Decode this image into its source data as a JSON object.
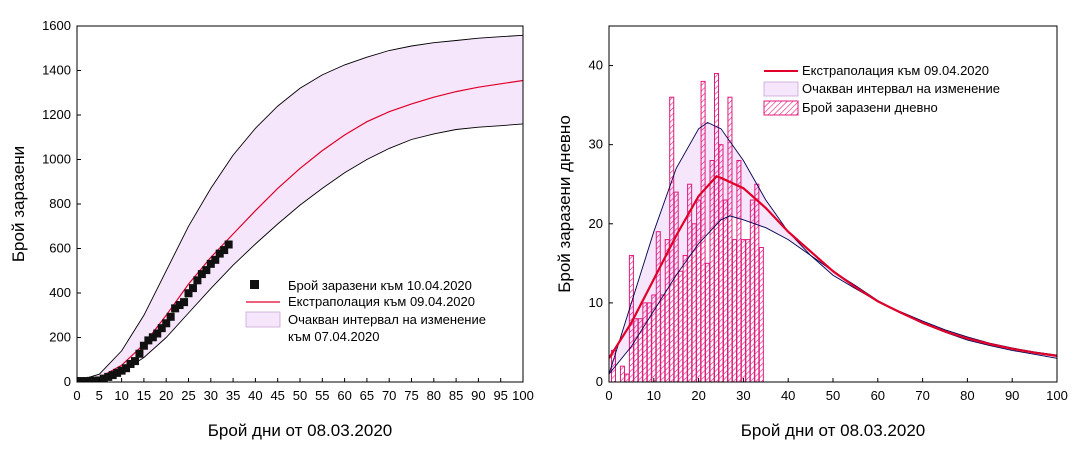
{
  "chart_data": [
    {
      "type": "line",
      "xlabel": "Брой дни от 08.03.2020",
      "ylabel": "Брой заразени",
      "xlim": [
        0,
        100
      ],
      "ylim": [
        0,
        1600
      ],
      "xticks": [
        0,
        5,
        10,
        15,
        20,
        25,
        30,
        35,
        40,
        45,
        50,
        55,
        60,
        65,
        70,
        75,
        80,
        85,
        90,
        95,
        100
      ],
      "yticks": [
        0,
        200,
        400,
        600,
        800,
        1000,
        1200,
        1400,
        1600
      ],
      "legend": {
        "position": "center-right",
        "items": [
          {
            "label": "Брой заразени към 10.04.2020",
            "kind": "marker"
          },
          {
            "label": "Екстраполация към 09.04.2020",
            "kind": "line"
          },
          {
            "label": "Очакван интервал на изменение",
            "label2": "към 07.04.2020",
            "kind": "band"
          }
        ]
      },
      "colors": {
        "extrapolation": "#e0002a",
        "band_fill": "#f6e6fb",
        "band_edge": "#000000",
        "marker": "#111111",
        "marker_line": "#7ab32e"
      },
      "series": [
        {
          "name": "Брой заразени към 10.04.2020",
          "x": [
            0,
            1,
            2,
            3,
            4,
            5,
            6,
            7,
            8,
            9,
            10,
            11,
            12,
            13,
            14,
            15,
            16,
            17,
            18,
            19,
            20,
            21,
            22,
            23,
            24,
            25,
            26,
            27,
            28,
            29,
            30,
            31,
            32,
            33,
            34
          ],
          "y": [
            4,
            4,
            4,
            5,
            6,
            7,
            15,
            23,
            31,
            41,
            51,
            62,
            81,
            94,
            127,
            163,
            187,
            201,
            218,
            242,
            264,
            293,
            331,
            346,
            359,
            399,
            422,
            457,
            485,
            503,
            531,
            549,
            577,
            593,
            618
          ]
        },
        {
          "name": "Екстраполация към 09.04.2020",
          "x": [
            0,
            5,
            10,
            15,
            20,
            25,
            30,
            35,
            40,
            45,
            50,
            55,
            60,
            65,
            70,
            75,
            80,
            85,
            90,
            95,
            100
          ],
          "y": [
            2,
            20,
            75,
            170,
            300,
            440,
            560,
            665,
            770,
            870,
            960,
            1040,
            1110,
            1170,
            1215,
            1250,
            1280,
            1305,
            1325,
            1340,
            1355
          ]
        },
        {
          "name": "upper",
          "x": [
            0,
            5,
            10,
            15,
            20,
            25,
            30,
            35,
            40,
            45,
            50,
            55,
            60,
            65,
            70,
            75,
            80,
            85,
            90,
            95,
            100
          ],
          "y": [
            5,
            35,
            140,
            300,
            500,
            700,
            870,
            1020,
            1140,
            1240,
            1320,
            1380,
            1425,
            1460,
            1490,
            1510,
            1525,
            1535,
            1545,
            1552,
            1558
          ]
        },
        {
          "name": "lower",
          "x": [
            0,
            5,
            10,
            15,
            20,
            25,
            30,
            35,
            40,
            45,
            50,
            55,
            60,
            65,
            70,
            75,
            80,
            85,
            90,
            95,
            100
          ],
          "y": [
            1,
            10,
            45,
            110,
            200,
            310,
            420,
            525,
            620,
            710,
            795,
            870,
            940,
            1000,
            1050,
            1090,
            1115,
            1135,
            1145,
            1152,
            1160
          ]
        }
      ]
    },
    {
      "type": "bar",
      "xlabel": "Брой дни от 08.03.2020",
      "ylabel": "Брой заразени дневно",
      "xlim": [
        0,
        100
      ],
      "ylim": [
        0,
        45
      ],
      "xticks": [
        0,
        10,
        20,
        30,
        40,
        50,
        60,
        70,
        80,
        90,
        100
      ],
      "yticks": [
        0,
        10,
        20,
        30,
        40
      ],
      "legend": {
        "position": "top-right",
        "items": [
          {
            "label": "Екстраполация към 09.04.2020",
            "kind": "line"
          },
          {
            "label": "Очакван интервал на изменение",
            "kind": "band"
          },
          {
            "label": "Брой заразени дневно",
            "kind": "hatch"
          }
        ]
      },
      "colors": {
        "extrapolation": "#e0002a",
        "band_fill": "#f6e6fb",
        "band_edge": "#000050",
        "bars": "#e01a7c"
      },
      "bars": {
        "name": "Брой заразени дневно",
        "x": [
          1,
          2,
          3,
          4,
          5,
          6,
          7,
          8,
          9,
          10,
          11,
          12,
          13,
          14,
          15,
          16,
          17,
          18,
          19,
          20,
          21,
          22,
          23,
          24,
          25,
          26,
          27,
          28,
          29,
          30,
          31,
          32,
          33,
          34
        ],
        "values": [
          4,
          0,
          2,
          1,
          16,
          8,
          8,
          10,
          10,
          11,
          19,
          11,
          18,
          36,
          24,
          14,
          16,
          25,
          20,
          23,
          38,
          15,
          28,
          39,
          30,
          23,
          36,
          18,
          28,
          18,
          18,
          23,
          25,
          17
        ]
      },
      "series": [
        {
          "name": "Екстраполация към 09.04.2020",
          "x": [
            0,
            5,
            10,
            15,
            20,
            24,
            25,
            30,
            35,
            40,
            45,
            50,
            55,
            60,
            65,
            70,
            75,
            80,
            85,
            90,
            95,
            100
          ],
          "y": [
            3,
            7.5,
            13,
            18.5,
            23.5,
            26,
            25.8,
            24.5,
            22,
            19,
            16.5,
            14,
            12,
            10.2,
            8.8,
            7.5,
            6.4,
            5.5,
            4.8,
            4.2,
            3.7,
            3.3
          ]
        },
        {
          "name": "upper",
          "x": [
            0,
            5,
            10,
            15,
            20,
            22,
            25,
            30,
            35,
            40,
            45,
            50,
            55,
            60,
            65,
            70,
            75,
            80,
            85,
            90,
            95,
            100
          ],
          "y": [
            1,
            10,
            19,
            27,
            32,
            32.8,
            32,
            28,
            23,
            19,
            16,
            13.5,
            11.8,
            10.2,
            8.9,
            7.7,
            6.6,
            5.7,
            4.9,
            4.3,
            3.8,
            3.4
          ]
        },
        {
          "name": "lower",
          "x": [
            0,
            5,
            10,
            15,
            20,
            25,
            27,
            30,
            35,
            40,
            45,
            50,
            55,
            60,
            65,
            70,
            75,
            80,
            85,
            90,
            95,
            100
          ],
          "y": [
            1,
            4.5,
            9,
            13.5,
            17.5,
            20.5,
            21,
            20.5,
            19.5,
            18,
            16,
            14,
            12.2,
            10.3,
            8.8,
            7.4,
            6.3,
            5.3,
            4.6,
            4,
            3.5,
            3
          ]
        }
      ]
    }
  ]
}
